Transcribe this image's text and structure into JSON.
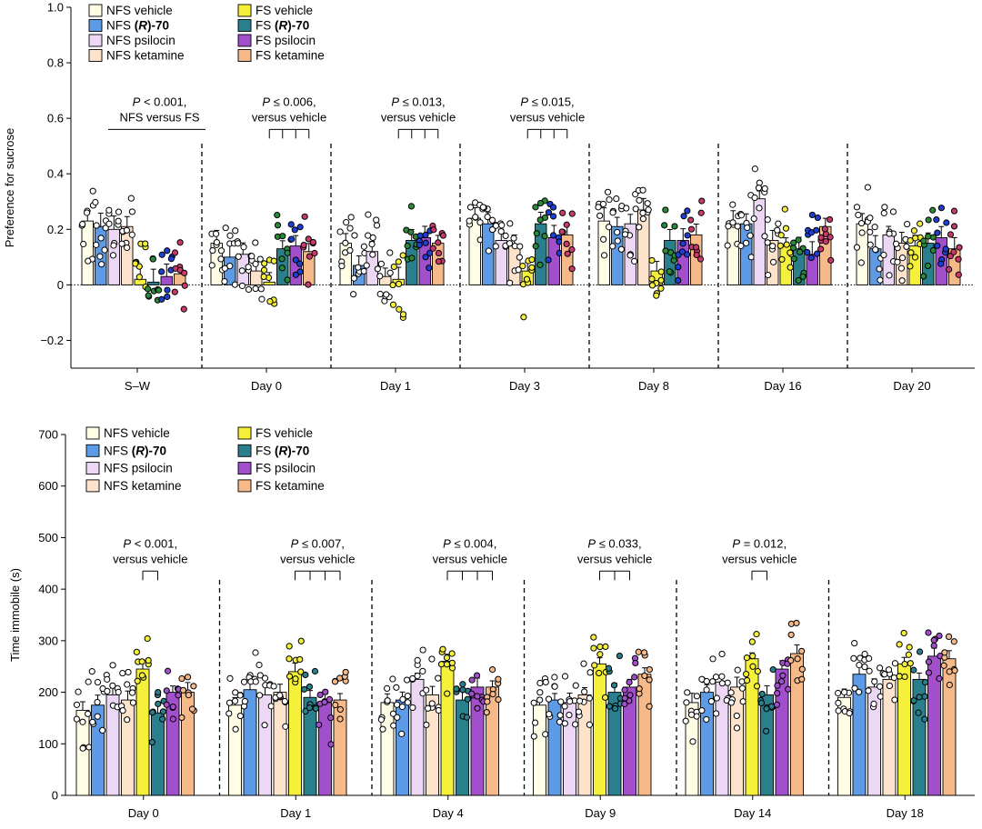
{
  "groups": [
    {
      "label": "NFS vehicle",
      "prefix": "NFS ",
      "core": "vehicle",
      "bold": false,
      "color": "#fffde6",
      "dot": "#ffffff"
    },
    {
      "label": "NFS (R)-70",
      "prefix": "NFS ",
      "core": "(R)-70",
      "bold": true,
      "color": "#5d9be6",
      "dot": "#ffffff"
    },
    {
      "label": "NFS psilocin",
      "prefix": "NFS ",
      "core": "psilocin",
      "bold": false,
      "color": "#ecd8f5",
      "dot": "#ffffff"
    },
    {
      "label": "NFS ketamine",
      "prefix": "NFS ",
      "core": "ketamine",
      "bold": false,
      "color": "#fde3cc",
      "dot": "#ffffff"
    },
    {
      "label": "FS vehicle",
      "prefix": "FS ",
      "core": "vehicle",
      "bold": false,
      "color": "#f5f03a",
      "dot": "#f5f03a"
    },
    {
      "label": "FS (R)-70",
      "prefix": "FS ",
      "core": "(R)-70",
      "bold": true,
      "color": "#2a7f8c",
      "dot": "#2a7f8c"
    },
    {
      "label": "FS psilocin",
      "prefix": "FS ",
      "core": "psilocin",
      "bold": false,
      "color": "#a24fcc",
      "dot": "#a24fcc"
    },
    {
      "label": "FS ketamine",
      "prefix": "FS ",
      "core": "ketamine",
      "bold": false,
      "color": "#f5b98a",
      "dot": "#f5b98a"
    }
  ],
  "preference_dot_colors": [
    "#ffffff",
    "#ffffff",
    "#ffffff",
    "#ffffff",
    "#f5f03a",
    "#2a8a3a",
    "#1d3fd4",
    "#c83a6e"
  ],
  "chart_data": [
    {
      "type": "bar",
      "ylabel": "Preference for sucrose",
      "ylim": [
        -0.3,
        1.0
      ],
      "yticks": [
        -0.2,
        0,
        0.2,
        0.4,
        0.6,
        0.8,
        1.0
      ],
      "ytick_labels": [
        "−0.2",
        "0",
        "0.2",
        "0.4",
        "0.6",
        "0.8",
        "1.0"
      ],
      "zero_line": "dotted",
      "categories": [
        "S–W",
        "Day 0",
        "Day 1",
        "Day 3",
        "Day 8",
        "Day 16",
        "Day 20"
      ],
      "series": [
        {
          "name": "NFS vehicle",
          "values": [
            0.23,
            0.15,
            0.15,
            0.24,
            0.23,
            0.22,
            0.22
          ]
        },
        {
          "name": "NFS (R)-70",
          "values": [
            0.21,
            0.1,
            0.07,
            0.22,
            0.21,
            0.22,
            0.13
          ]
        },
        {
          "name": "NFS psilocin",
          "values": [
            0.2,
            0.11,
            0.12,
            0.16,
            0.22,
            0.31,
            0.18
          ]
        },
        {
          "name": "NFS ketamine",
          "values": [
            0.21,
            0.05,
            0.03,
            0.14,
            0.27,
            0.16,
            0.15
          ]
        },
        {
          "name": "FS vehicle",
          "values": [
            0.02,
            0.01,
            0.02,
            0.05,
            0.05,
            0.14,
            0.14
          ]
        },
        {
          "name": "FS (R)-70",
          "values": [
            0.01,
            0.13,
            0.16,
            0.22,
            0.16,
            0.13,
            0.15
          ]
        },
        {
          "name": "FS psilocin",
          "values": [
            0.03,
            0.14,
            0.17,
            0.17,
            0.16,
            0.11,
            0.17
          ]
        },
        {
          "name": "FS ketamine",
          "values": [
            0.04,
            0.12,
            0.15,
            0.18,
            0.18,
            0.21,
            0.13
          ]
        }
      ],
      "annotations": [
        {
          "line1": "P < 0.001,",
          "line2": "NFS versus FS",
          "day": 0,
          "type": "line",
          "y": 0.56
        },
        {
          "line1": "P ≤ 0.006,",
          "line2": "versus vehicle",
          "day": 1,
          "type": "bracket",
          "y": 0.56,
          "from": 4,
          "to": [
            5,
            6,
            7
          ]
        },
        {
          "line1": "P ≤ 0.013,",
          "line2": "versus vehicle",
          "day": 2,
          "type": "bracket",
          "y": 0.56,
          "from": 4,
          "to": [
            5,
            6,
            7
          ]
        },
        {
          "line1": "P ≤ 0.015,",
          "line2": "versus vehicle",
          "day": 3,
          "type": "bracket",
          "y": 0.56,
          "from": 4,
          "to": [
            5,
            6,
            7
          ]
        }
      ]
    },
    {
      "type": "bar",
      "ylabel": "Time immobile (s)",
      "ylim": [
        0,
        700
      ],
      "yticks": [
        0,
        100,
        200,
        300,
        400,
        500,
        600,
        700
      ],
      "ytick_labels": [
        "0",
        "100",
        "200",
        "300",
        "400",
        "500",
        "600",
        "700"
      ],
      "categories": [
        "Day 0",
        "Day 1",
        "Day 4",
        "Day 9",
        "Day 14",
        "Day 18"
      ],
      "series": [
        {
          "name": "NFS vehicle",
          "values": [
            165,
            175,
            180,
            175,
            180,
            190
          ]
        },
        {
          "name": "NFS (R)-70",
          "values": [
            175,
            205,
            185,
            185,
            200,
            235
          ]
        },
        {
          "name": "NFS psilocin",
          "values": [
            195,
            195,
            225,
            180,
            220,
            210
          ]
        },
        {
          "name": "NFS ketamine",
          "values": [
            185,
            200,
            195,
            195,
            210,
            225
          ]
        },
        {
          "name": "FS vehicle",
          "values": [
            245,
            240,
            260,
            255,
            265,
            255
          ]
        },
        {
          "name": "FS (R)-70",
          "values": [
            160,
            190,
            185,
            200,
            195,
            225
          ]
        },
        {
          "name": "FS psilocin",
          "values": [
            200,
            180,
            210,
            210,
            245,
            270
          ]
        },
        {
          "name": "FS ketamine",
          "values": [
            200,
            185,
            210,
            235,
            275,
            265
          ]
        }
      ],
      "annotations": [
        {
          "line1": "P < 0.001,",
          "line2": "versus vehicle",
          "day": 0,
          "type": "bracket",
          "y": 435,
          "from": 4,
          "to": [
            5
          ]
        },
        {
          "line1": "P ≤ 0.007,",
          "line2": "versus vehicle",
          "day": 1,
          "type": "bracket",
          "y": 435,
          "from": 4,
          "to": [
            5,
            6,
            7
          ]
        },
        {
          "line1": "P ≤ 0.004,",
          "line2": "versus vehicle",
          "day": 2,
          "type": "bracket",
          "y": 435,
          "from": 4,
          "to": [
            5,
            6,
            7
          ]
        },
        {
          "line1": "P ≤ 0.033,",
          "line2": "versus vehicle",
          "day": 3,
          "type": "bracket",
          "y": 435,
          "from": 4,
          "to": [
            5,
            6
          ]
        },
        {
          "line1": "P = 0.012,",
          "line2": "versus vehicle",
          "day": 4,
          "type": "bracket",
          "y": 435,
          "from": 4,
          "to": [
            5
          ]
        }
      ]
    }
  ]
}
